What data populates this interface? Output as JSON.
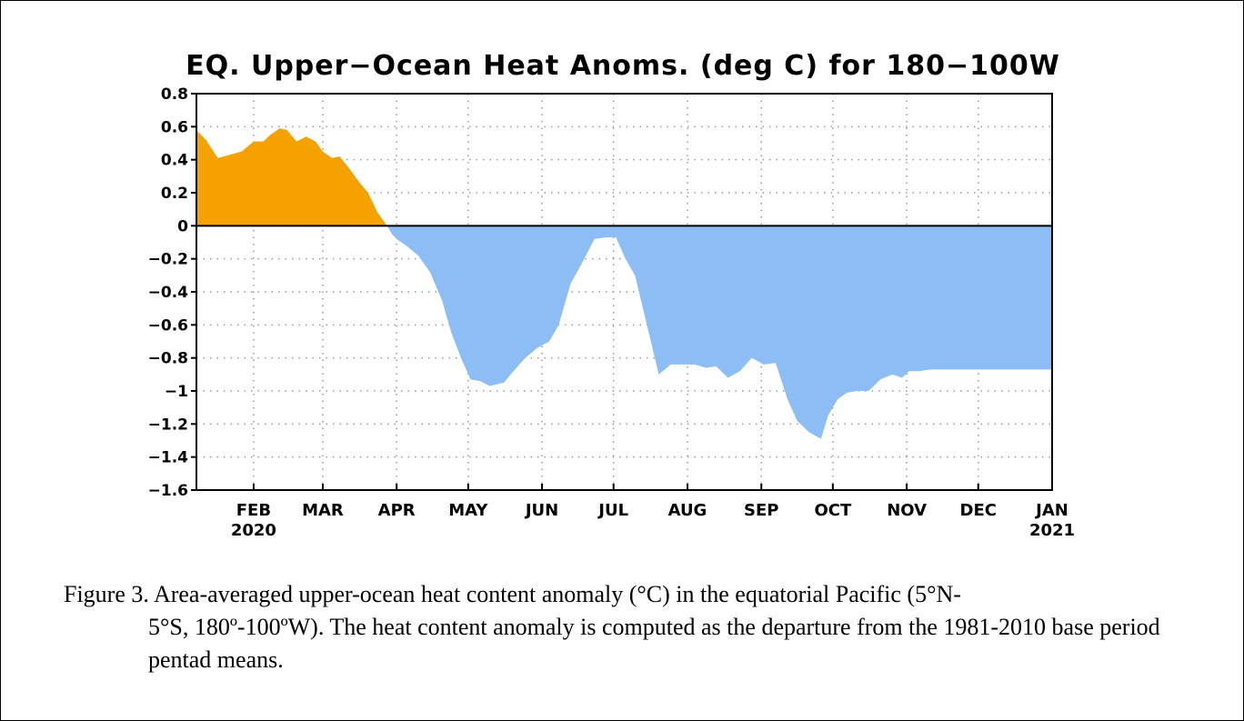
{
  "chart_data": {
    "type": "area",
    "title": "EQ. Upper−Ocean Heat Anoms. (deg C) for 180−100W",
    "xlabel": "",
    "ylabel": "",
    "ylim": [
      -1.6,
      0.8
    ],
    "yticks": [
      0.8,
      0.6,
      0.4,
      0.2,
      0,
      -0.2,
      -0.4,
      -0.6,
      -0.8,
      -1,
      -1.2,
      -1.4,
      -1.6
    ],
    "ytick_labels": [
      "0.8",
      "0.6",
      "0.4",
      "0.2",
      "0",
      "−0.2",
      "−0.4",
      "−0.6",
      "−0.8",
      "−1",
      "−1.2",
      "−1.4",
      "−1.6"
    ],
    "xlim": [
      "2020-01-08",
      "2021-01-01"
    ],
    "xticks": [
      {
        "date": "2020-02-01",
        "label": "FEB",
        "sublabel": "2020"
      },
      {
        "date": "2020-03-01",
        "label": "MAR",
        "sublabel": ""
      },
      {
        "date": "2020-04-01",
        "label": "APR",
        "sublabel": ""
      },
      {
        "date": "2020-05-01",
        "label": "MAY",
        "sublabel": ""
      },
      {
        "date": "2020-06-01",
        "label": "JUN",
        "sublabel": ""
      },
      {
        "date": "2020-07-01",
        "label": "JUL",
        "sublabel": ""
      },
      {
        "date": "2020-08-01",
        "label": "AUG",
        "sublabel": ""
      },
      {
        "date": "2020-09-01",
        "label": "SEP",
        "sublabel": ""
      },
      {
        "date": "2020-10-01",
        "label": "OCT",
        "sublabel": ""
      },
      {
        "date": "2020-11-01",
        "label": "NOV",
        "sublabel": ""
      },
      {
        "date": "2020-12-01",
        "label": "DEC",
        "sublabel": ""
      },
      {
        "date": "2021-01-01",
        "label": "JAN",
        "sublabel": "2021"
      }
    ],
    "grid": true,
    "positive_color": "#f5a100",
    "negative_color": "#8dbdf5",
    "series": [
      {
        "x": [
          "2020-01-08",
          "2020-01-12",
          "2020-01-17",
          "2020-01-22",
          "2020-01-27",
          "2020-02-01",
          "2020-02-05",
          "2020-02-08",
          "2020-02-12",
          "2020-02-15",
          "2020-02-19",
          "2020-02-23",
          "2020-02-27",
          "2020-03-01",
          "2020-03-05",
          "2020-03-08",
          "2020-03-12",
          "2020-03-16",
          "2020-03-20",
          "2020-03-24",
          "2020-03-28",
          "2020-03-30",
          "2020-04-01",
          "2020-04-05",
          "2020-04-10",
          "2020-04-15",
          "2020-04-20",
          "2020-04-24",
          "2020-04-28",
          "2020-05-02",
          "2020-05-06",
          "2020-05-10",
          "2020-05-16",
          "2020-05-20",
          "2020-05-25",
          "2020-05-30",
          "2020-06-04",
          "2020-06-08",
          "2020-06-13",
          "2020-06-18",
          "2020-06-23",
          "2020-06-28",
          "2020-07-02",
          "2020-07-06",
          "2020-07-10",
          "2020-07-15",
          "2020-07-20",
          "2020-07-25",
          "2020-07-29",
          "2020-08-04",
          "2020-08-09",
          "2020-08-13",
          "2020-08-18",
          "2020-08-23",
          "2020-08-28",
          "2020-09-02",
          "2020-09-07",
          "2020-09-12",
          "2020-09-16",
          "2020-09-21",
          "2020-09-26",
          "2020-09-29",
          "2020-10-03",
          "2020-10-07",
          "2020-10-11",
          "2020-10-16",
          "2020-10-21",
          "2020-10-26",
          "2020-10-30",
          "2020-11-02",
          "2020-11-06",
          "2020-11-11",
          "2020-11-16",
          "2020-11-21",
          "2020-11-26",
          "2020-12-01",
          "2020-12-06",
          "2020-12-11",
          "2020-12-16",
          "2020-12-21",
          "2020-12-26",
          "2020-12-31",
          "2021-01-01"
        ],
        "y": [
          0.58,
          0.52,
          0.41,
          0.43,
          0.45,
          0.51,
          0.51,
          0.55,
          0.59,
          0.58,
          0.51,
          0.54,
          0.51,
          0.45,
          0.41,
          0.42,
          0.35,
          0.27,
          0.2,
          0.08,
          0.0,
          -0.05,
          -0.08,
          -0.12,
          -0.18,
          -0.28,
          -0.45,
          -0.65,
          -0.8,
          -0.93,
          -0.94,
          -0.97,
          -0.95,
          -0.88,
          -0.8,
          -0.74,
          -0.7,
          -0.6,
          -0.35,
          -0.22,
          -0.08,
          -0.07,
          -0.07,
          -0.2,
          -0.3,
          -0.6,
          -0.9,
          -0.84,
          -0.84,
          -0.84,
          -0.86,
          -0.85,
          -0.92,
          -0.88,
          -0.8,
          -0.84,
          -0.83,
          -1.05,
          -1.18,
          -1.25,
          -1.29,
          -1.15,
          -1.05,
          -1.01,
          -1.0,
          -1.0,
          -0.93,
          -0.9,
          -0.92,
          -0.88,
          -0.88,
          -0.87,
          -0.87,
          -0.87,
          -0.87,
          -0.87,
          -0.87,
          -0.87,
          -0.87,
          -0.87,
          -0.87,
          -0.87,
          -0.87
        ]
      }
    ]
  },
  "caption": {
    "line1": "Figure  3. Area-averaged upper-ocean heat content anomaly  (°C) in the equatorial  Pacific (5°N-",
    "rest": "5°S, 180º-100ºW).  The heat content anomaly is computed as the departure from the 1981-2010  base period pentad means."
  }
}
